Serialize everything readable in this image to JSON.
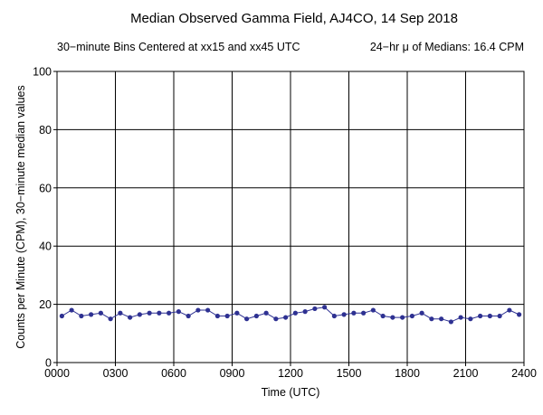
{
  "chart_data": {
    "type": "line",
    "title": "Median Observed Gamma Field, AJ4CO, 14 Sep 2018",
    "subtitle_left": "30−minute Bins Centered at xx15 and xx45 UTC",
    "subtitle_right": "24−hr μ of Medians: 16.4 CPM",
    "xlabel": "Time (UTC)",
    "ylabel": "Counts per Minute (CPM), 30−minute median values",
    "xlim": [
      0,
      24
    ],
    "ylim": [
      0,
      100
    ],
    "grid": true,
    "x_ticks": [
      {
        "value": 0,
        "label": "0000"
      },
      {
        "value": 3,
        "label": "0300"
      },
      {
        "value": 6,
        "label": "0600"
      },
      {
        "value": 9,
        "label": "0900"
      },
      {
        "value": 12,
        "label": "1200"
      },
      {
        "value": 15,
        "label": "1500"
      },
      {
        "value": 18,
        "label": "1800"
      },
      {
        "value": 21,
        "label": "2100"
      },
      {
        "value": 24,
        "label": "2400"
      }
    ],
    "y_ticks": [
      {
        "value": 0,
        "label": "0"
      },
      {
        "value": 20,
        "label": "20"
      },
      {
        "value": 40,
        "label": "40"
      },
      {
        "value": 60,
        "label": "60"
      },
      {
        "value": 80,
        "label": "80"
      },
      {
        "value": 100,
        "label": "100"
      }
    ],
    "series": [
      {
        "color": "#2e3192",
        "x": [
          0.25,
          0.75,
          1.25,
          1.75,
          2.25,
          2.75,
          3.25,
          3.75,
          4.25,
          4.75,
          5.25,
          5.75,
          6.25,
          6.75,
          7.25,
          7.75,
          8.25,
          8.75,
          9.25,
          9.75,
          10.25,
          10.75,
          11.25,
          11.75,
          12.25,
          12.75,
          13.25,
          13.75,
          14.25,
          14.75,
          15.25,
          15.75,
          16.25,
          16.75,
          17.25,
          17.75,
          18.25,
          18.75,
          19.25,
          19.75,
          20.25,
          20.75,
          21.25,
          21.75,
          22.25,
          22.75,
          23.25,
          23.75
        ],
        "values": [
          16,
          18,
          16,
          16.5,
          17,
          15,
          17,
          15.5,
          16.5,
          17,
          17,
          17,
          17.5,
          16,
          18,
          18,
          16,
          16,
          17,
          15,
          16,
          17,
          15,
          15.5,
          17,
          17.5,
          18.5,
          19,
          16,
          16.5,
          17,
          17,
          18,
          16,
          15.5,
          15.5,
          16,
          17,
          15,
          15,
          14,
          15.5,
          15,
          16,
          16,
          16,
          18,
          16.5
        ]
      }
    ]
  }
}
